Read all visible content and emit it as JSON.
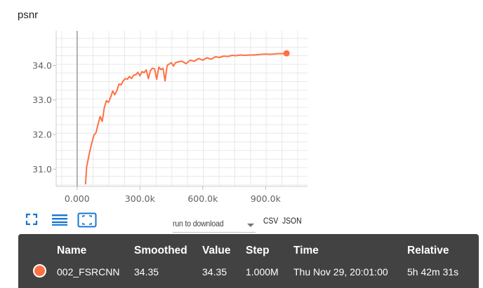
{
  "card": {
    "title": "psnr"
  },
  "chart_data": {
    "type": "line",
    "title": "psnr",
    "xlabel": "",
    "ylabel": "",
    "xlim": [
      -100000,
      1100000
    ],
    "ylim": [
      30.5,
      35.0
    ],
    "x_ticks": [
      0,
      300000,
      600000,
      900000
    ],
    "x_tick_labels": [
      "0.000",
      "300.0k",
      "600.0k",
      "900.0k"
    ],
    "y_ticks": [
      31.0,
      32.0,
      33.0,
      34.0
    ],
    "y_tick_labels": [
      "31.0",
      "32.0",
      "33.0",
      "34.0"
    ],
    "grid": true,
    "series": [
      {
        "name": "002_FSRCNN",
        "color": "#ff7043",
        "x": [
          40000,
          45000,
          50000,
          60000,
          70000,
          80000,
          90000,
          100000,
          110000,
          120000,
          130000,
          140000,
          150000,
          160000,
          170000,
          180000,
          190000,
          200000,
          210000,
          220000,
          230000,
          240000,
          250000,
          260000,
          270000,
          280000,
          290000,
          300000,
          310000,
          320000,
          330000,
          340000,
          350000,
          360000,
          370000,
          380000,
          390000,
          400000,
          410000,
          420000,
          430000,
          440000,
          450000,
          460000,
          470000,
          480000,
          500000,
          520000,
          540000,
          560000,
          580000,
          600000,
          620000,
          640000,
          660000,
          680000,
          700000,
          720000,
          740000,
          760000,
          780000,
          800000,
          820000,
          840000,
          860000,
          880000,
          900000,
          920000,
          940000,
          960000,
          980000,
          1000000
        ],
        "values": [
          30.56,
          31.05,
          31.2,
          31.5,
          31.75,
          31.98,
          32.05,
          32.3,
          32.52,
          32.38,
          32.78,
          32.98,
          32.93,
          33.08,
          33.26,
          33.15,
          33.27,
          33.46,
          33.44,
          33.55,
          33.62,
          33.6,
          33.68,
          33.62,
          33.72,
          33.73,
          33.8,
          33.7,
          33.82,
          33.79,
          33.87,
          33.62,
          33.85,
          33.92,
          33.9,
          33.6,
          33.95,
          33.88,
          33.92,
          33.55,
          34.0,
          34.04,
          34.08,
          33.98,
          34.08,
          34.1,
          34.12,
          34.05,
          34.15,
          34.12,
          34.2,
          34.15,
          34.22,
          34.18,
          34.25,
          34.23,
          34.27,
          34.26,
          34.29,
          34.28,
          34.3,
          34.29,
          34.3,
          34.3,
          34.31,
          34.32,
          34.33,
          34.32,
          34.33,
          34.34,
          34.34,
          34.35
        ]
      }
    ],
    "marker_x": 0
  },
  "toolbar": {
    "expand_icon": "fullscreen-icon",
    "log_icon": "list-lines-icon",
    "fit_icon": "fit-domain-icon",
    "download_label": "run to download",
    "csv_label": "CSV",
    "json_label": "JSON"
  },
  "tooltip": {
    "headers": {
      "name": "Name",
      "smoothed": "Smoothed",
      "value": "Value",
      "step": "Step",
      "time": "Time",
      "relative": "Relative"
    },
    "row": {
      "name": "002_FSRCNN",
      "smoothed": "34.35",
      "value": "34.35",
      "step": "1.000M",
      "time": "Thu Nov 29, 20:01:00",
      "relative": "5h 42m 31s",
      "color": "#ff7043"
    }
  }
}
